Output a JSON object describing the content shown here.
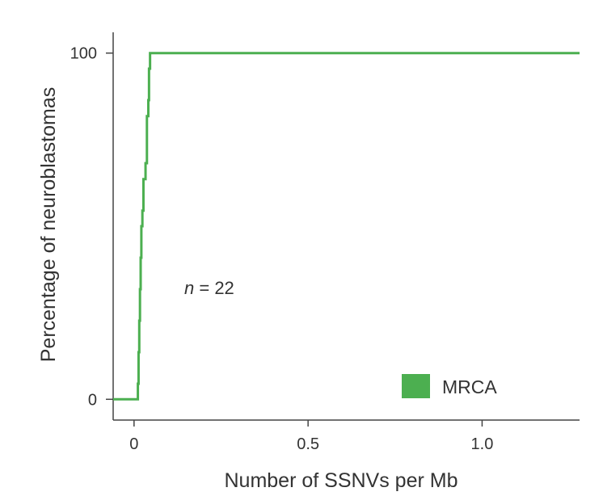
{
  "chart_data": {
    "type": "line",
    "title": "",
    "xlabel": "Number of SSNVs per Mb",
    "ylabel": "Percentage of neuroblastomas",
    "xlim": [
      -0.06,
      1.28
    ],
    "ylim": [
      -6,
      106
    ],
    "x_ticks": [
      {
        "value": 0,
        "label": "0"
      },
      {
        "value": 0.5,
        "label": "0.5"
      },
      {
        "value": 1.0,
        "label": "1.0"
      }
    ],
    "y_ticks": [
      {
        "value": 0,
        "label": "0"
      },
      {
        "value": 100,
        "label": "100"
      }
    ],
    "annotation": {
      "italic": "n",
      "rest": " = 22"
    },
    "legend": {
      "position": "bottom-right"
    },
    "series": [
      {
        "name": "MRCA",
        "color": "#4caf50",
        "step": true,
        "points": [
          [
            -0.06,
            0
          ],
          [
            0.011,
            0
          ],
          [
            0.011,
            4.5
          ],
          [
            0.013,
            4.5
          ],
          [
            0.013,
            13.6
          ],
          [
            0.015,
            13.6
          ],
          [
            0.015,
            22.7
          ],
          [
            0.017,
            22.7
          ],
          [
            0.017,
            31.8
          ],
          [
            0.019,
            31.8
          ],
          [
            0.019,
            40.9
          ],
          [
            0.021,
            40.9
          ],
          [
            0.021,
            50.0
          ],
          [
            0.024,
            50.0
          ],
          [
            0.024,
            54.5
          ],
          [
            0.027,
            54.5
          ],
          [
            0.027,
            63.6
          ],
          [
            0.033,
            63.6
          ],
          [
            0.033,
            68.2
          ],
          [
            0.037,
            68.2
          ],
          [
            0.037,
            81.8
          ],
          [
            0.041,
            81.8
          ],
          [
            0.041,
            86.4
          ],
          [
            0.043,
            86.4
          ],
          [
            0.043,
            95.5
          ],
          [
            0.046,
            95.5
          ],
          [
            0.046,
            100
          ],
          [
            1.28,
            100
          ]
        ]
      }
    ]
  }
}
